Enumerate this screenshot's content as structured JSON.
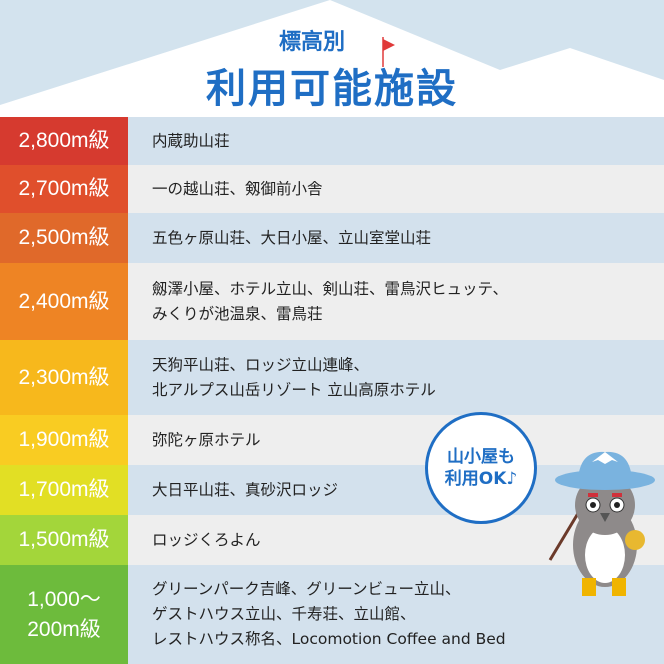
{
  "header": {
    "subtitle": "標高別",
    "title": "利用可能施設"
  },
  "rows": [
    {
      "level": "2,800m級",
      "color": "#d63a2f",
      "bg": "#d3e1ed",
      "lines": [
        "内蔵助山荘"
      ]
    },
    {
      "level": "2,700m級",
      "color": "#e04f2c",
      "bg": "#eeeeee",
      "lines": [
        "一の越山荘、剱御前小舎"
      ]
    },
    {
      "level": "2,500m級",
      "color": "#e0692a",
      "bg": "#d3e1ed",
      "lines": [
        "五色ヶ原山荘、大日小屋、立山室堂山荘"
      ]
    },
    {
      "level": "2,400m級",
      "color": "#ee8424",
      "bg": "#eeeeee",
      "lines": [
        "劔澤小屋、ホテル立山、剣山荘、雷鳥沢ヒュッテ、",
        "みくりが池温泉、雷鳥荘"
      ]
    },
    {
      "level": "2,300m級",
      "color": "#f7b81c",
      "bg": "#d3e1ed",
      "lines": [
        "天狗平山荘、ロッジ立山連峰、",
        "北アルプス山岳リゾート 立山高原ホテル"
      ]
    },
    {
      "level": "1,900m級",
      "color": "#f9cc22",
      "bg": "#eeeeee",
      "lines": [
        "弥陀ヶ原ホテル"
      ]
    },
    {
      "level": "1,700m級",
      "color": "#e2df24",
      "bg": "#d3e1ed",
      "lines": [
        "大日平山荘、真砂沢ロッジ"
      ]
    },
    {
      "level": "1,500m級",
      "color": "#a3d63a",
      "bg": "#eeeeee",
      "lines": [
        "ロッジくろよん"
      ]
    },
    {
      "level": "1,000～\n200m級",
      "color": "#6dbb3c",
      "bg": "#d3e1ed",
      "lines": [
        "グリーンパーク吉峰、グリーンビュー立山、",
        "ゲストハウス立山、千寿荘、立山館、",
        "レストハウス称名、Locomotion Coffee and Bed"
      ]
    }
  ],
  "bubble": {
    "line1": "山小屋も",
    "line2": "利用OK♪"
  },
  "colors": {
    "title": "#1f6ec4",
    "flag": "#e03a3a"
  }
}
